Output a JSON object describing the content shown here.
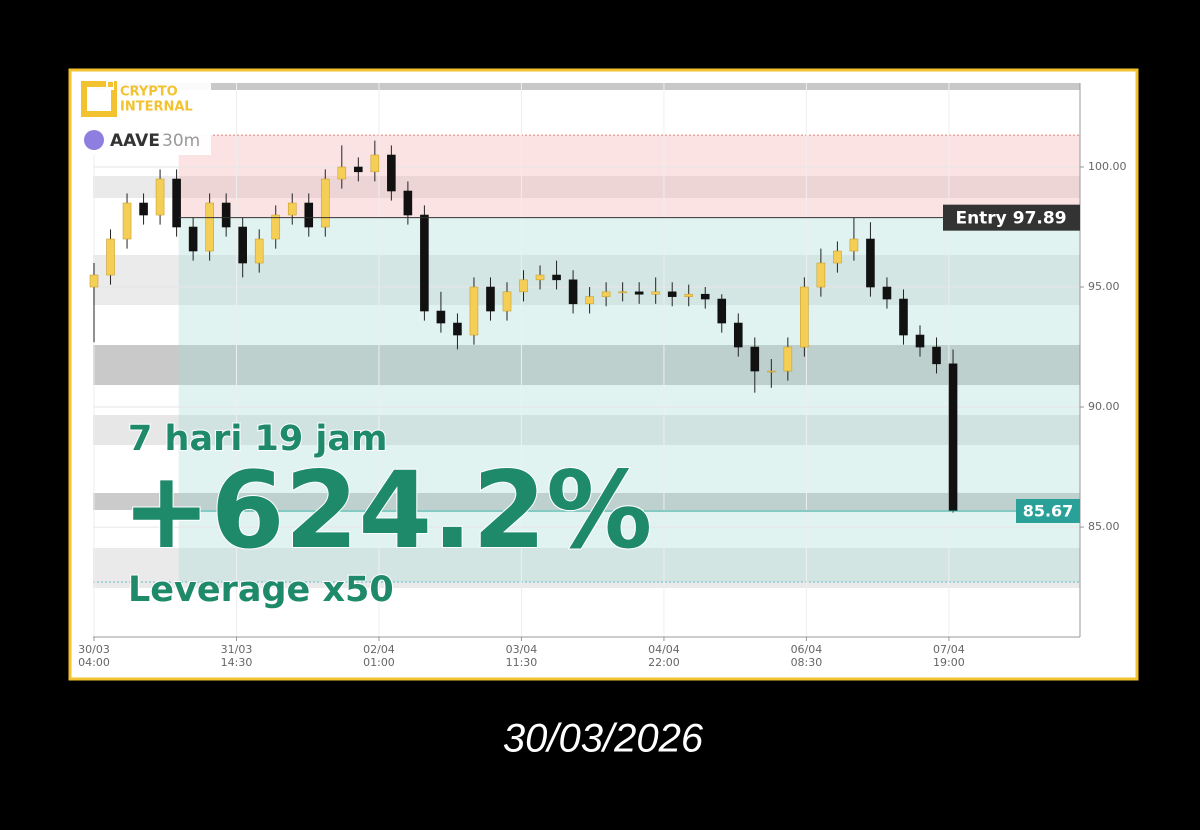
{
  "chart_data": {
    "type": "candlestick",
    "logo": {
      "line1": "CRYPTO",
      "line2": "INTERNAL"
    },
    "symbol": "AAVE",
    "interval": "30m",
    "x": [
      "30/03 04:00",
      "30/03 08:00",
      "30/03 12:00",
      "30/03 16:00",
      "30/03 20:00",
      "31/03 00:00",
      "31/03 04:00",
      "31/03 08:00",
      "31/03 12:00",
      "31/03 16:00",
      "31/03 20:00",
      "01/04 00:00",
      "01/04 04:00",
      "01/04 08:00",
      "01/04 12:00",
      "01/04 16:00",
      "01/04 20:00",
      "02/04 00:00",
      "02/04 04:00",
      "02/04 08:00",
      "02/04 12:00",
      "02/04 16:00",
      "02/04 20:00",
      "03/04 00:00",
      "03/04 04:00",
      "03/04 08:00",
      "03/04 12:00",
      "03/04 16:00",
      "03/04 20:00",
      "04/04 00:00",
      "04/04 04:00",
      "04/04 08:00",
      "04/04 12:00",
      "04/04 16:00",
      "04/04 20:00",
      "05/04 00:00",
      "05/04 04:00",
      "05/04 08:00",
      "05/04 12:00",
      "05/04 16:00",
      "05/04 20:00",
      "06/04 00:00",
      "06/04 04:00",
      "06/04 08:00",
      "06/04 12:00",
      "06/04 16:00",
      "06/04 20:00",
      "07/04 00:00",
      "07/04 04:00",
      "07/04 08:00",
      "07/04 12:00",
      "07/04 16:00",
      "07/04 20:00"
    ],
    "open": [
      95.0,
      95.5,
      97,
      98.5,
      98,
      99.5,
      97.5,
      96.5,
      98.5,
      97.5,
      96,
      97,
      98,
      98.5,
      97.5,
      99.5,
      100,
      99.8,
      100.5,
      99,
      98,
      94,
      93.5,
      93,
      95,
      94,
      94.8,
      95.3,
      95.5,
      95.3,
      94.3,
      94.6,
      94.8,
      94.8,
      94.7,
      94.8,
      94.6,
      94.7,
      94.5,
      93.5,
      92.5,
      91.5,
      91.5,
      92.5,
      95,
      96,
      96.5,
      97,
      95,
      94.5,
      93,
      92.5,
      91.8
    ],
    "high": [
      96.0,
      97.4,
      98.9,
      98.9,
      99.9,
      99.9,
      97.9,
      98.9,
      98.9,
      97.9,
      97.4,
      98.4,
      98.9,
      98.9,
      99.9,
      100.9,
      100.4,
      101.1,
      100.9,
      99.4,
      98.4,
      94.8,
      93.9,
      95.4,
      95.4,
      95.2,
      95.7,
      95.9,
      96.1,
      95.7,
      95.0,
      95.2,
      95.2,
      95.2,
      95.4,
      95.2,
      95.1,
      95.0,
      94.7,
      93.9,
      92.9,
      92.0,
      92.9,
      95.4,
      96.6,
      96.9,
      97.9,
      97.7,
      95.4,
      94.9,
      93.4,
      92.9,
      92.4
    ],
    "low": [
      92.7,
      95.1,
      96.6,
      97.6,
      97.6,
      97.1,
      96.1,
      96.1,
      97.1,
      95.4,
      95.6,
      96.6,
      97.6,
      97.1,
      97.1,
      99.1,
      99.4,
      99.4,
      98.6,
      97.6,
      93.6,
      93.1,
      92.4,
      92.6,
      93.6,
      93.6,
      94.4,
      94.9,
      94.9,
      93.9,
      93.9,
      94.2,
      94.4,
      94.3,
      94.3,
      94.2,
      94.2,
      94.1,
      93.1,
      92.1,
      90.6,
      90.8,
      91.1,
      92.1,
      94.6,
      95.6,
      96.1,
      94.6,
      94.1,
      92.6,
      92.1,
      91.4,
      85.6
    ],
    "close": [
      95.5,
      97,
      98.5,
      98,
      99.5,
      97.5,
      96.5,
      98.5,
      97.5,
      96,
      97,
      98,
      98.5,
      97.5,
      99.5,
      100,
      99.8,
      100.5,
      99,
      98,
      94,
      93.5,
      93,
      95,
      94,
      94.8,
      95.3,
      95.5,
      95.3,
      94.3,
      94.6,
      94.8,
      94.8,
      94.7,
      94.8,
      94.6,
      94.7,
      94.5,
      93.5,
      92.5,
      91.5,
      91.5,
      92.5,
      95,
      96,
      96.5,
      97,
      95,
      94.5,
      93,
      92.5,
      91.8,
      85.67
    ],
    "up_color": "#f5cf55",
    "down_color": "#111111",
    "ylim": [
      80.42,
      103.5
    ],
    "yticks": [
      {
        "value": 85,
        "label": "85.00"
      },
      {
        "value": 90,
        "label": "90.00"
      },
      {
        "value": 95,
        "label": "95.00"
      },
      {
        "value": 100,
        "label": "100.00"
      }
    ],
    "xticks": [
      "30/03 04:00",
      "31/03 14:30",
      "02/04 01:00",
      "03/04 11:30",
      "04/04 22:00",
      "06/04 08:30",
      "07/04 19:00"
    ],
    "grid": true,
    "position": {
      "start": "31/03 00:30",
      "entry_label": "Entry",
      "entry": 97.89,
      "exit": 85.67,
      "stop_loss": 101.33,
      "take_profit": 82.71
    },
    "duration": "7 hari 19 jam",
    "return_label": "+624.2%",
    "leverage": "Leverage x50"
  },
  "footer_date": "30/03/2026"
}
